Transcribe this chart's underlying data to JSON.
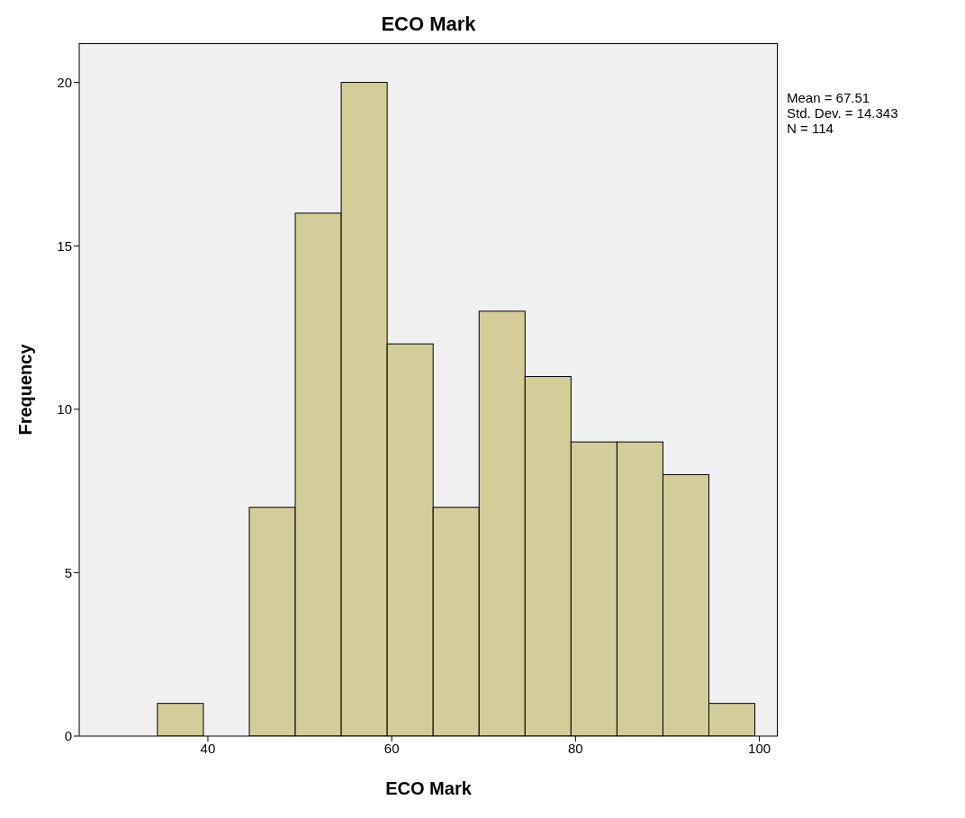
{
  "chart_data": {
    "type": "histogram",
    "title": "ECO Mark",
    "xlabel": "ECO Mark",
    "ylabel": "Frequency",
    "bins": [
      34.5,
      39.5,
      44.5,
      49.5,
      54.5,
      59.5,
      64.5,
      69.5,
      74.5,
      79.5,
      84.5,
      89.5,
      94.5,
      99.5
    ],
    "values": [
      1,
      0,
      7,
      16,
      20,
      12,
      7,
      13,
      11,
      9,
      9,
      8,
      1
    ],
    "color": "#d3ce97",
    "xlim": [
      26,
      102
    ],
    "xticks": [
      40,
      60,
      80,
      100
    ],
    "ylim": [
      0,
      21.2
    ],
    "yticks": [
      0,
      5,
      10,
      15,
      20
    ],
    "annotations": [
      "Mean = 67.51",
      "Std. Dev. = 14.343",
      "N = 114"
    ]
  }
}
